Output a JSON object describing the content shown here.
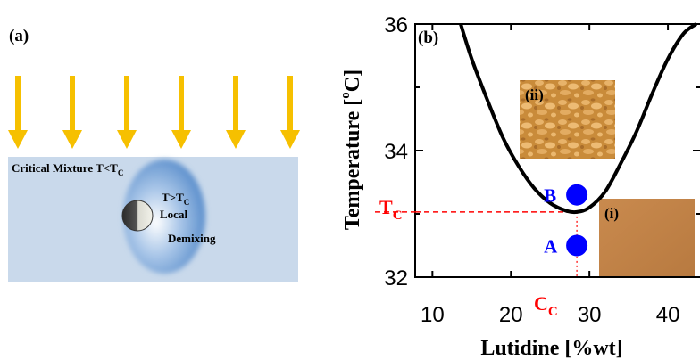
{
  "panel_a": {
    "label": "(a)",
    "mixture_label_main": "Critical Mixture T<T",
    "mixture_label_sub": "C",
    "bubble_line1_main": "T>T",
    "bubble_line1_sub": "C",
    "bubble_line2": "Local",
    "bubble_line3": "Demixing",
    "arrow_icon": "down-arrow-icon",
    "arrow_count": 6,
    "colors": {
      "arrow": "#f6c000",
      "mixture": "#c9d9eb",
      "bubble": "#7ea6d6"
    }
  },
  "panel_b": {
    "label": "(b)",
    "inset_ii_label": "(ii)",
    "inset_i_label": "(i)",
    "point_b_label": "B",
    "point_a_label": "A",
    "tc_label_main": "T",
    "tc_label_sub": "C",
    "cc_label_main": "C",
    "cc_label_sub": "C",
    "colors": {
      "point": "#0000ff",
      "critical": "#ff0000"
    }
  },
  "chart_data": {
    "type": "line",
    "xlabel": "Lutidine [%wt]",
    "ylabel_main": "Temperature [",
    "ylabel_degree": "o",
    "ylabel_unit": "C]",
    "xlim": [
      7.8,
      44.2
    ],
    "ylim": [
      32,
      36
    ],
    "x_ticks": [
      10,
      20,
      30,
      40
    ],
    "y_ticks": [
      32,
      34,
      36
    ],
    "series": [
      {
        "x": [
          13.6,
          15,
          17,
          19,
          21,
          23,
          25,
          27,
          28.4,
          30,
          32,
          34,
          36,
          38,
          40,
          42,
          43.6
        ],
        "y": [
          36.0,
          35.45,
          34.8,
          34.2,
          33.75,
          33.4,
          33.17,
          33.05,
          33.03,
          33.1,
          33.35,
          33.8,
          34.3,
          34.9,
          35.45,
          35.85,
          36.0
        ]
      }
    ],
    "points": [
      {
        "label": "B",
        "x": 28.4,
        "y": 33.3
      },
      {
        "label": "A",
        "x": 28.4,
        "y": 32.5
      }
    ],
    "critical_point": {
      "x": 28.4,
      "y": 33.03
    },
    "grid": false
  }
}
